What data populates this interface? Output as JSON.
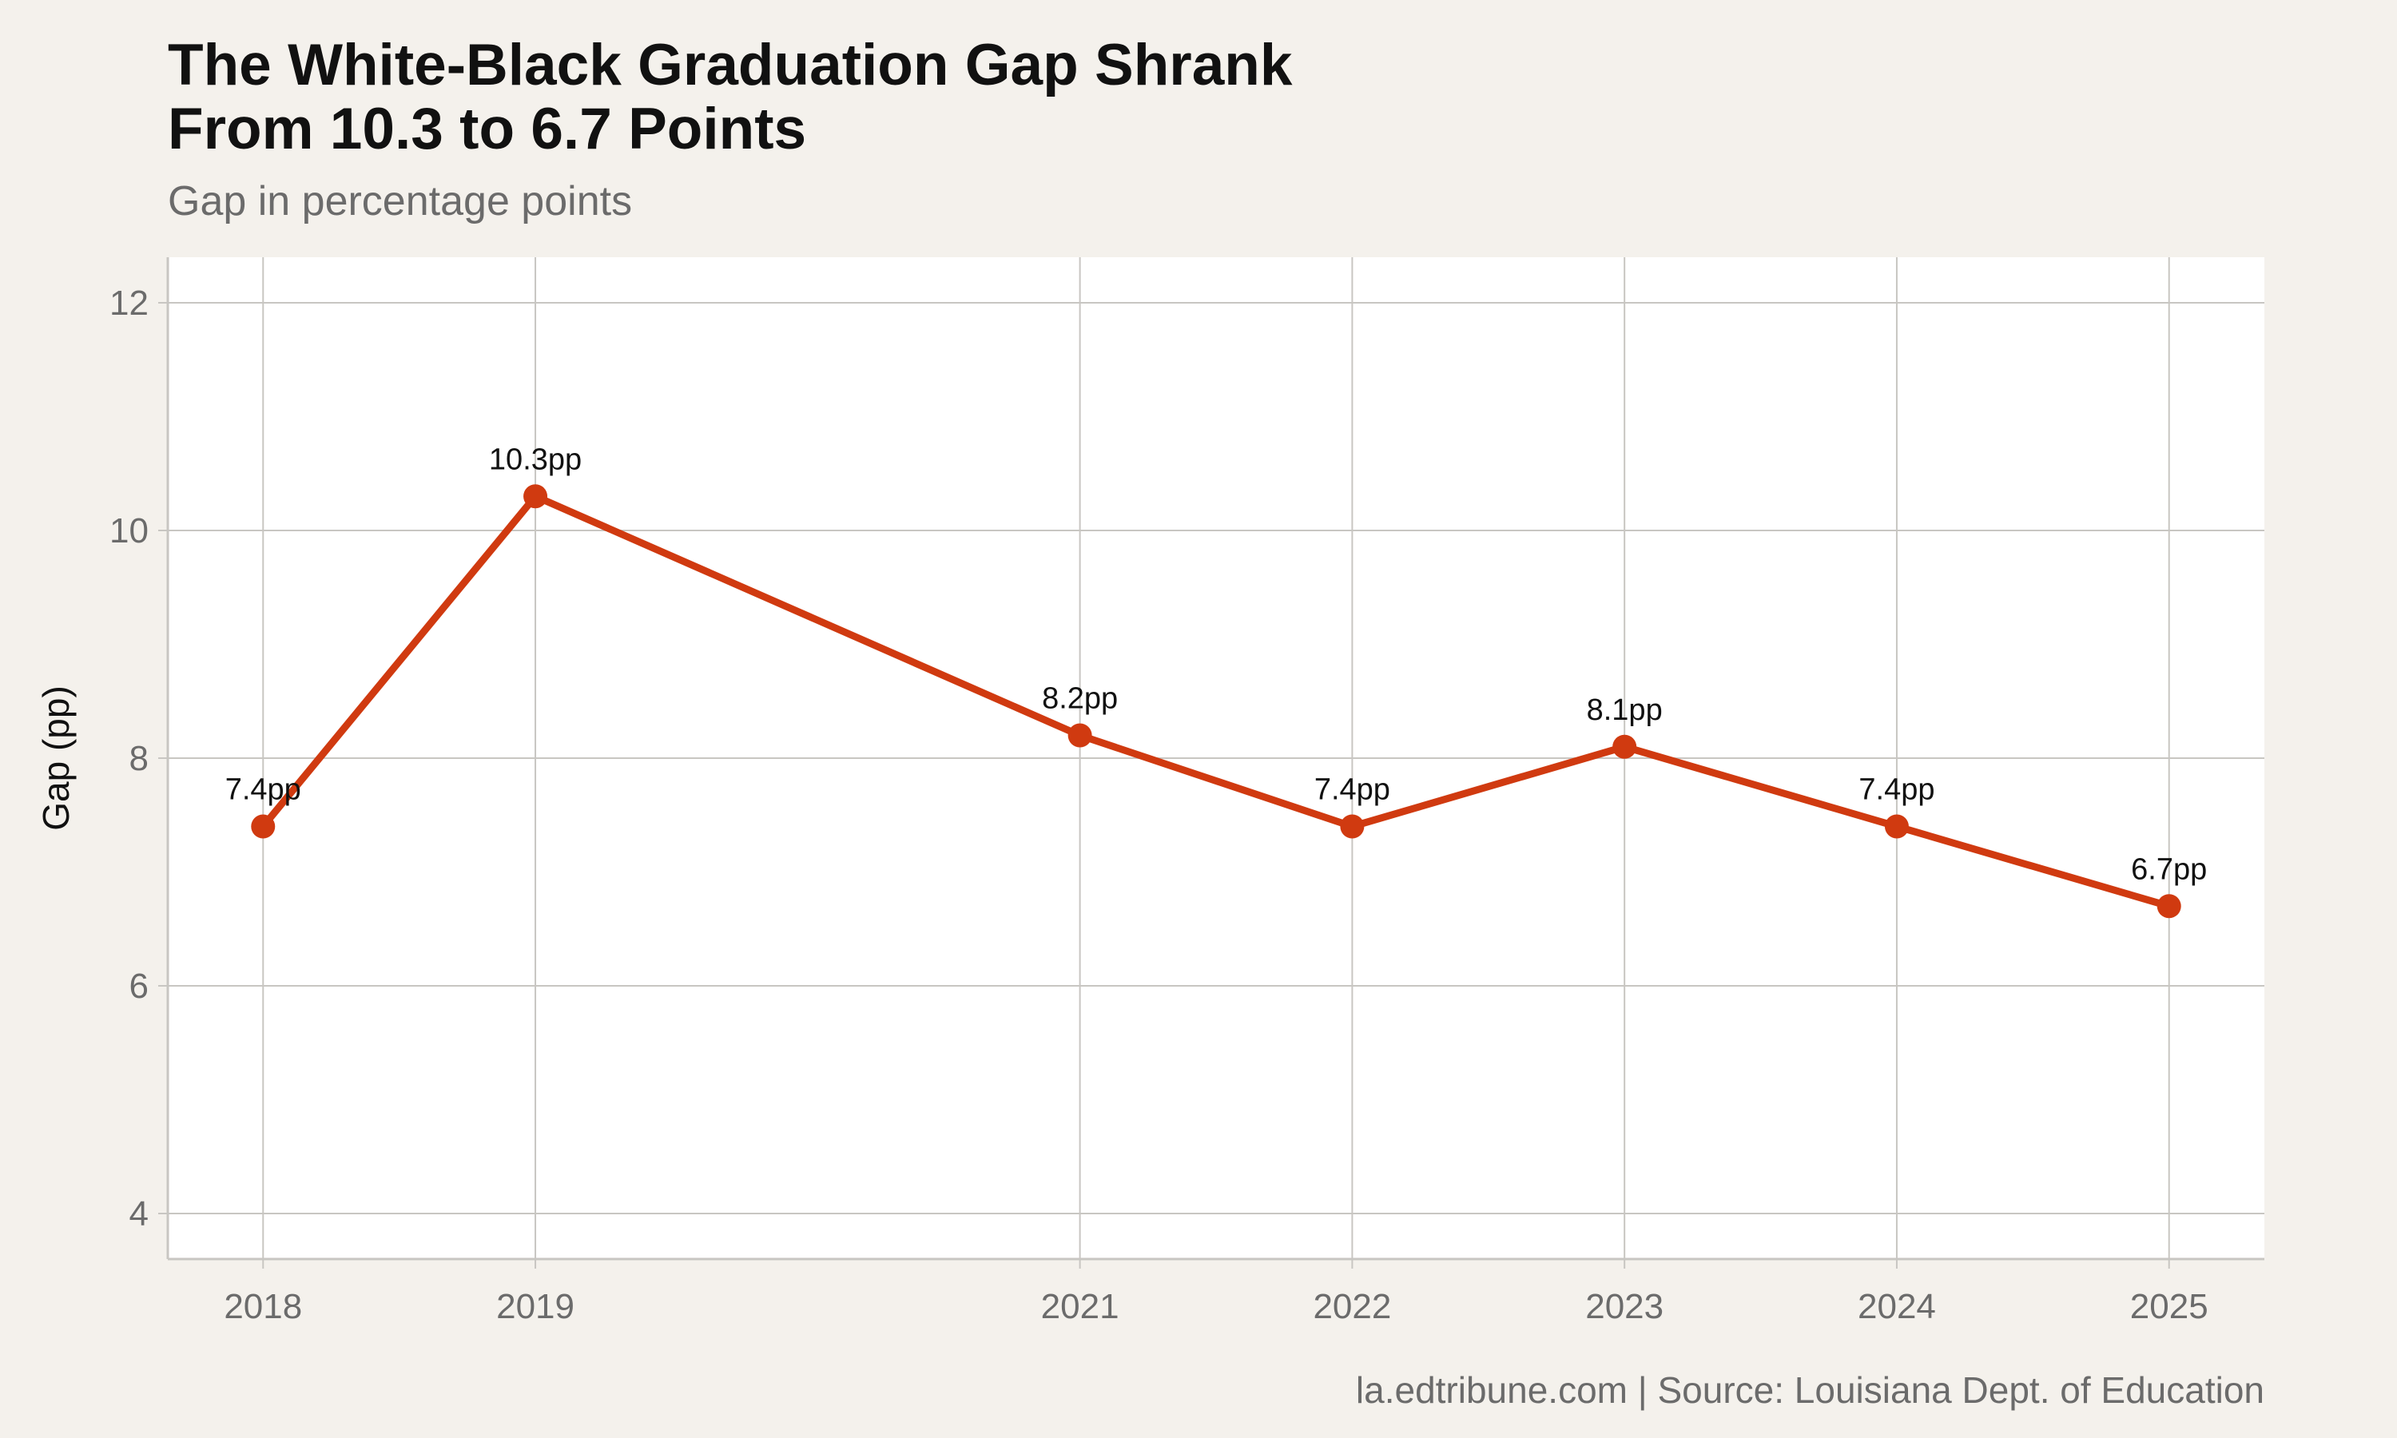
{
  "header": {
    "title": "The White-Black Graduation Gap Shrank\nFrom 10.3 to 6.7 Points",
    "subtitle": "Gap in percentage points"
  },
  "footer": {
    "caption": "la.edtribune.com | Source: Louisiana Dept. of Education"
  },
  "colors": {
    "background": "#f4f1ec",
    "panel": "#ffffff",
    "grid": "#c8c6c2",
    "line": "#d03a10"
  },
  "chart_data": {
    "type": "line",
    "title": "The White-Black Graduation Gap Shrank\nFrom 10.3 to 6.7 Points",
    "subtitle": "Gap in percentage points",
    "xlabel": "",
    "ylabel": "Gap (pp)",
    "x": [
      2018,
      2019,
      2021,
      2022,
      2023,
      2024,
      2025
    ],
    "x_tick_labels": [
      "2018",
      "2019",
      "2021",
      "2022",
      "2023",
      "2024",
      "2025"
    ],
    "y_ticks": [
      4,
      6,
      8,
      10,
      12
    ],
    "y_tick_labels": [
      "4",
      "6",
      "8",
      "10",
      "12"
    ],
    "xlim": [
      2017.65,
      2025.35
    ],
    "ylim": [
      3.6,
      12.4
    ],
    "grid": true,
    "legend": "none",
    "series": [
      {
        "values": [
          7.4,
          10.3,
          8.2,
          7.4,
          8.1,
          7.4,
          6.7
        ],
        "data_labels": [
          "7.4pp",
          "10.3pp",
          "8.2pp",
          "7.4pp",
          "8.1pp",
          "7.4pp",
          "6.7pp"
        ],
        "color": "#d03a10"
      }
    ]
  }
}
